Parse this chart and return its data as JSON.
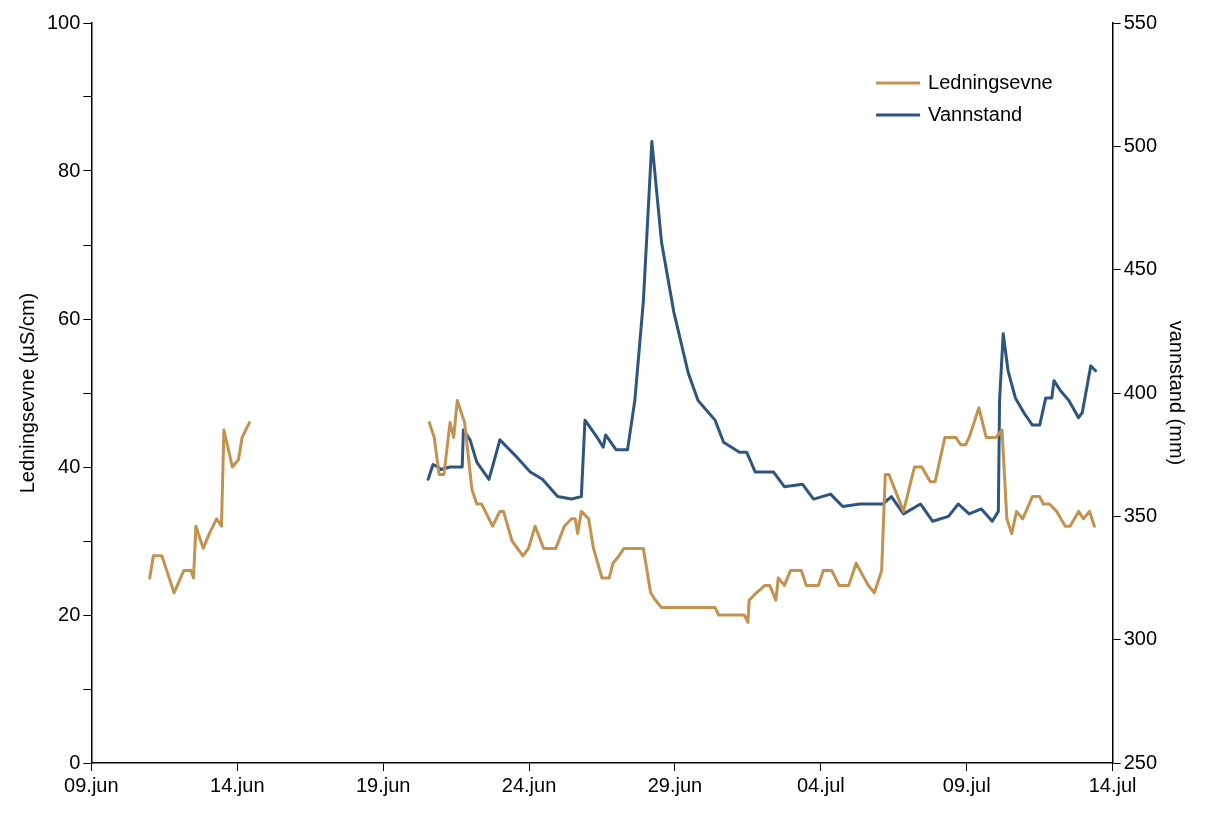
{
  "chart_data": {
    "type": "line",
    "ylabel": "Ledningsevne (µS/cm)",
    "y2label": "vannstand (mm)",
    "legend": "top right",
    "grid": false,
    "line_style": "solid",
    "marker": "none",
    "xlim": [
      "--06-09",
      "--07-14"
    ],
    "xticks": [
      {
        "value": "--06-09",
        "label": "09.jun"
      },
      {
        "value": "--06-14",
        "label": "14.jun"
      },
      {
        "value": "--06-19",
        "label": "19.jun"
      },
      {
        "value": "--06-24",
        "label": "24.jun"
      },
      {
        "value": "--06-29",
        "label": "29.jun"
      },
      {
        "value": "--07-04",
        "label": "04.jul"
      },
      {
        "value": "--07-09",
        "label": "09.jul"
      },
      {
        "value": "--07-14",
        "label": "14.jul"
      }
    ],
    "ylim": [
      0,
      100
    ],
    "yticks": [
      0,
      {
        "value": 10,
        "label": null
      },
      20,
      {
        "value": 30,
        "label": null
      },
      40,
      {
        "value": 50,
        "label": null
      },
      60,
      {
        "value": 70,
        "label": null
      },
      80,
      {
        "value": 90,
        "label": null
      },
      100
    ],
    "y2lim": [
      250,
      550
    ],
    "y2ticks": [
      250,
      300,
      350,
      400,
      450,
      500,
      550
    ],
    "series": [
      {
        "name": "Ledningsevne",
        "color": "#c4924f",
        "x": [
          "--06-11T00:00",
          "--06-11T03:00",
          "--06-11T10:00",
          "--06-11T14:00",
          "--06-11T20:00",
          "--06-12T04:00",
          "--06-12T10:00",
          "--06-12T12:00",
          "--06-12T14:00",
          "--06-12T20:00",
          "--06-13T01:00",
          "--06-13T07:00",
          "--06-13T11:00",
          "--06-13T13:00",
          "--06-13T20:00",
          "--06-14T01:00",
          "--06-14T04:00",
          "--06-14T10:00",
          "--06-17T12:00",
          "--06-20T14:00",
          "--06-20T18:00",
          "--06-20T22:00",
          "--06-21T02:00",
          "--06-21T07:00",
          "--06-21T10:00",
          "--06-21T13:00",
          "--06-21T19:00",
          "--06-22T01:00",
          "--06-22T05:00",
          "--06-22T09:00",
          "--06-22T18:00",
          "--06-23T00:00",
          "--06-23T03:00",
          "--06-23T10:00",
          "--06-23T19:00",
          "--06-23T23:30",
          "--06-24T05:00",
          "--06-24T12:00",
          "--06-24T22:00",
          "--06-25T05:00",
          "--06-25T11:00",
          "--06-25T14:00",
          "--06-25T16:00",
          "--06-25T19:00",
          "--06-26T01:00",
          "--06-26T05:00",
          "--06-26T12:00",
          "--06-26T18:00",
          "--06-26T21:00",
          "--06-27T02:00",
          "--06-27T06:00",
          "--06-27T22:00",
          "--06-28T04:00",
          "--06-28T08:00",
          "--06-28T13:00",
          "--06-30T09:00",
          "--06-30T12:00",
          "--07-01T09:00",
          "--07-01T12:00",
          "--07-01T13:00",
          "--07-01T19:00",
          "--07-02T02:00",
          "--07-02T06:00",
          "--07-02T11:00",
          "--07-02T13:00",
          "--07-02T18:00",
          "--07-02T23:00",
          "--07-03T08:00",
          "--07-03T12:00",
          "--07-03T22:00",
          "--07-04T02:00",
          "--07-04T09:00",
          "--07-04T15:00",
          "--07-04T23:00",
          "--07-05T05:00",
          "--07-05T15:00",
          "--07-05T20:00",
          "--07-06T02:00",
          "--07-06T05:00",
          "--07-06T08:00",
          "--07-06T20:00",
          "--07-07T05:00",
          "--07-07T11:00",
          "--07-07T18:00",
          "--07-07T22:00",
          "--07-08T06:00",
          "--07-08T15:00",
          "--07-08T19:00",
          "--07-08T23:00",
          "--07-09T02:00",
          "--07-09T10:00",
          "--07-09T16:00",
          "--07-10T00:00",
          "--07-10T05:00",
          "--07-10T09:00",
          "--07-10T13:00",
          "--07-10T17:00",
          "--07-10T22:00",
          "--07-11T06:00",
          "--07-11T12:00",
          "--07-11T15:00",
          "--07-11T20:00",
          "--07-12T02:00",
          "--07-12T09:00",
          "--07-12T13:00",
          "--07-12T20:00",
          "--07-13T00:00",
          "--07-13T05:00",
          "--07-13T09:00"
        ],
        "values": [
          25,
          28,
          28,
          26,
          23,
          26,
          26,
          25,
          32,
          29,
          31,
          33,
          32,
          45,
          40,
          41,
          44,
          46,
          null,
          46,
          44,
          39,
          39,
          46,
          44,
          49,
          46,
          37,
          35,
          35,
          32,
          34,
          34,
          30,
          28,
          29,
          32,
          29,
          29,
          32,
          33,
          33,
          31,
          34,
          33,
          29,
          25,
          25,
          27,
          28,
          29,
          29,
          23,
          22,
          21,
          21,
          20,
          20,
          19,
          22,
          23,
          24,
          24,
          22,
          25,
          24,
          26,
          26,
          24,
          24,
          26,
          26,
          24,
          24,
          27,
          24,
          23,
          26,
          39,
          39,
          34,
          40,
          40,
          38,
          38,
          44,
          44,
          43,
          43,
          44,
          48,
          44,
          44,
          45,
          33,
          31,
          34,
          33,
          36,
          36,
          35,
          35,
          34,
          32,
          32,
          34,
          33,
          34,
          32
        ]
      },
      {
        "name": "Vannstand",
        "color": "#2e5580",
        "axis": "y2",
        "x": [
          "--06-20T13:00",
          "--06-20T17:00",
          "--06-20T21:00",
          "--06-20T23:30",
          "--06-21T07:00",
          "--06-21T17:00",
          "--06-21T18:00",
          "--06-21T23:30",
          "--06-22T05:00",
          "--06-22T15:00",
          "--06-22T19:00",
          "--06-23T00:00",
          "--06-23T14:00",
          "--06-24T01:00",
          "--06-24T11:00",
          "--06-24T23:30",
          "--06-25T11:00",
          "--06-25T19:00",
          "--06-25T22:00",
          "--06-26T08:00",
          "--06-26T13:00",
          "--06-26T15:00",
          "--06-26T23:30",
          "--06-27T09:00",
          "--06-27T15:00",
          "--06-27T22:00",
          "--06-28T05:00",
          "--06-28T13:00",
          "--06-28T23:00",
          "--06-29T11:00",
          "--06-29T19:00",
          "--06-30T09:00",
          "--06-30T16:00",
          "--07-01T05:00",
          "--07-01T11:00",
          "--07-01T18:00",
          "--07-02T09:00",
          "--07-02T18:00",
          "--07-03T09:00",
          "--07-03T18:00",
          "--07-04T08:00",
          "--07-04T18:00",
          "--07-05T08:00",
          "--07-06T03:00",
          "--07-06T10:00",
          "--07-06T20:00",
          "--07-07T10:00",
          "--07-07T20:00",
          "--07-08T09:00",
          "--07-08T17:00",
          "--07-09T02:00",
          "--07-09T12:00",
          "--07-09T21:00",
          "--07-10T02:00",
          "--07-10T03:00",
          "--07-10T06:00",
          "--07-10T10:00",
          "--07-10T16:00",
          "--07-10T23:00",
          "--07-11T06:00",
          "--07-11T12:00",
          "--07-11T17:00",
          "--07-11T22:00",
          "--07-11T23:45",
          "--07-12T05:00",
          "--07-12T12:00",
          "--07-12T20:00",
          "--07-12T23:00",
          "--07-13T06:00",
          "--07-13T10:00"
        ],
        "values": [
          365,
          371,
          370,
          369,
          370,
          370,
          385,
          381,
          372,
          365,
          372,
          381,
          374,
          368,
          365,
          358,
          357,
          358,
          389,
          382,
          378,
          383,
          377,
          377,
          397,
          437,
          502,
          461,
          433,
          408,
          397,
          389,
          380,
          376,
          376,
          368,
          368,
          362,
          363,
          357,
          359,
          354,
          355,
          355,
          358,
          351,
          355,
          348,
          350,
          355,
          351,
          353,
          348,
          352,
          397,
          424,
          409,
          398,
          392,
          387,
          387,
          398,
          398,
          405,
          401,
          397,
          390,
          392,
          411,
          409
        ]
      }
    ]
  }
}
